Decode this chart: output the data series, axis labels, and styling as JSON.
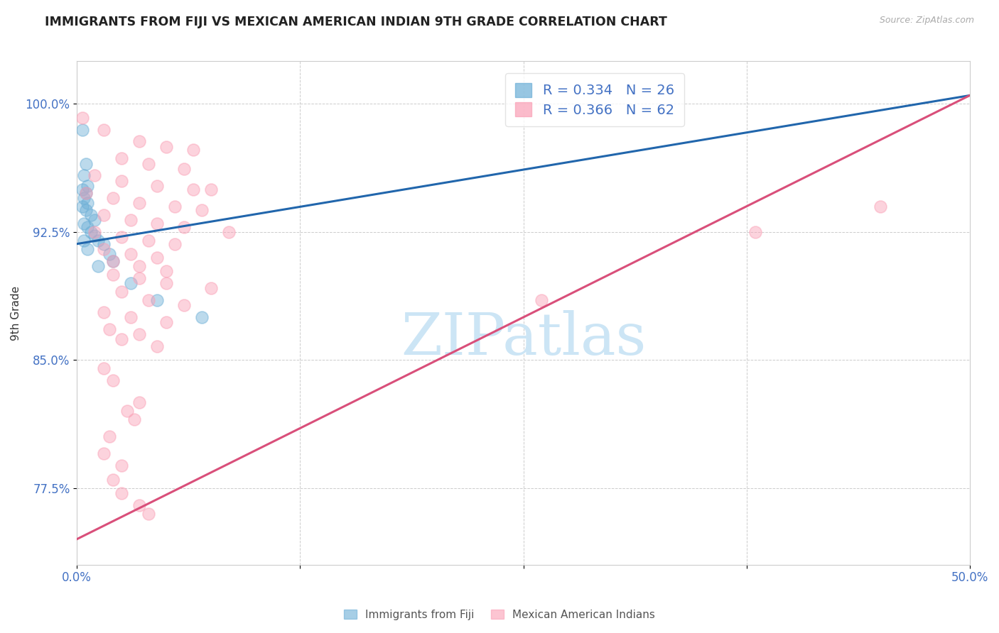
{
  "title": "IMMIGRANTS FROM FIJI VS MEXICAN AMERICAN INDIAN 9TH GRADE CORRELATION CHART",
  "source": "Source: ZipAtlas.com",
  "ylabel": "9th Grade",
  "xlim": [
    0.0,
    50.0
  ],
  "ylim": [
    73.0,
    102.5
  ],
  "yticks": [
    77.5,
    85.0,
    92.5,
    100.0
  ],
  "ytick_labels": [
    "77.5%",
    "85.0%",
    "92.5%",
    "100.0%"
  ],
  "xticks": [
    0.0,
    12.5,
    25.0,
    37.5,
    50.0
  ],
  "xtick_labels": [
    "0.0%",
    "",
    "",
    "",
    "50.0%"
  ],
  "watermark": "ZIPatlas",
  "watermark_color": "#cce5f5",
  "fiji_color": "#6baed6",
  "mexican_color": "#fa9fb5",
  "fiji_line_color": "#2166ac",
  "mexican_line_color": "#d94f7a",
  "background_color": "#ffffff",
  "fiji_R": 0.334,
  "fiji_N": 26,
  "mexican_R": 0.366,
  "mexican_N": 62,
  "fiji_line": [
    [
      0.0,
      91.8
    ],
    [
      50.0,
      100.5
    ]
  ],
  "mexican_line": [
    [
      0.0,
      74.5
    ],
    [
      50.0,
      100.5
    ]
  ],
  "fiji_points": [
    [
      0.3,
      98.5
    ],
    [
      0.5,
      96.5
    ],
    [
      0.4,
      95.8
    ],
    [
      0.6,
      95.2
    ],
    [
      0.3,
      95.0
    ],
    [
      0.5,
      94.8
    ],
    [
      0.4,
      94.5
    ],
    [
      0.6,
      94.2
    ],
    [
      0.3,
      94.0
    ],
    [
      0.5,
      93.8
    ],
    [
      0.8,
      93.5
    ],
    [
      1.0,
      93.2
    ],
    [
      0.4,
      93.0
    ],
    [
      0.6,
      92.8
    ],
    [
      0.8,
      92.5
    ],
    [
      1.0,
      92.3
    ],
    [
      1.2,
      92.0
    ],
    [
      0.4,
      92.0
    ],
    [
      1.5,
      91.8
    ],
    [
      0.6,
      91.5
    ],
    [
      1.8,
      91.2
    ],
    [
      2.0,
      90.8
    ],
    [
      1.2,
      90.5
    ],
    [
      3.0,
      89.5
    ],
    [
      4.5,
      88.5
    ],
    [
      7.0,
      87.5
    ]
  ],
  "mexican_points": [
    [
      0.3,
      99.2
    ],
    [
      1.5,
      98.5
    ],
    [
      3.5,
      97.8
    ],
    [
      5.0,
      97.5
    ],
    [
      6.5,
      97.3
    ],
    [
      2.5,
      96.8
    ],
    [
      4.0,
      96.5
    ],
    [
      6.0,
      96.2
    ],
    [
      1.0,
      95.8
    ],
    [
      2.5,
      95.5
    ],
    [
      4.5,
      95.2
    ],
    [
      6.5,
      95.0
    ],
    [
      7.5,
      95.0
    ],
    [
      0.5,
      94.8
    ],
    [
      2.0,
      94.5
    ],
    [
      3.5,
      94.2
    ],
    [
      5.5,
      94.0
    ],
    [
      7.0,
      93.8
    ],
    [
      1.5,
      93.5
    ],
    [
      3.0,
      93.2
    ],
    [
      4.5,
      93.0
    ],
    [
      6.0,
      92.8
    ],
    [
      1.0,
      92.5
    ],
    [
      2.5,
      92.2
    ],
    [
      4.0,
      92.0
    ],
    [
      5.5,
      91.8
    ],
    [
      1.5,
      91.5
    ],
    [
      3.0,
      91.2
    ],
    [
      4.5,
      91.0
    ],
    [
      2.0,
      90.8
    ],
    [
      3.5,
      90.5
    ],
    [
      5.0,
      90.2
    ],
    [
      2.0,
      90.0
    ],
    [
      3.5,
      89.8
    ],
    [
      5.0,
      89.5
    ],
    [
      7.5,
      89.2
    ],
    [
      2.5,
      89.0
    ],
    [
      4.0,
      88.5
    ],
    [
      6.0,
      88.2
    ],
    [
      1.5,
      87.8
    ],
    [
      3.0,
      87.5
    ],
    [
      5.0,
      87.2
    ],
    [
      1.8,
      86.8
    ],
    [
      3.5,
      86.5
    ],
    [
      2.5,
      86.2
    ],
    [
      4.5,
      85.8
    ],
    [
      1.5,
      84.5
    ],
    [
      2.0,
      83.8
    ],
    [
      3.5,
      82.5
    ],
    [
      2.8,
      82.0
    ],
    [
      3.2,
      81.5
    ],
    [
      1.8,
      80.5
    ],
    [
      1.5,
      79.5
    ],
    [
      2.5,
      78.8
    ],
    [
      2.0,
      78.0
    ],
    [
      2.5,
      77.2
    ],
    [
      3.5,
      76.5
    ],
    [
      4.0,
      76.0
    ],
    [
      38.0,
      92.5
    ],
    [
      45.0,
      94.0
    ],
    [
      26.0,
      88.5
    ],
    [
      8.5,
      92.5
    ]
  ]
}
